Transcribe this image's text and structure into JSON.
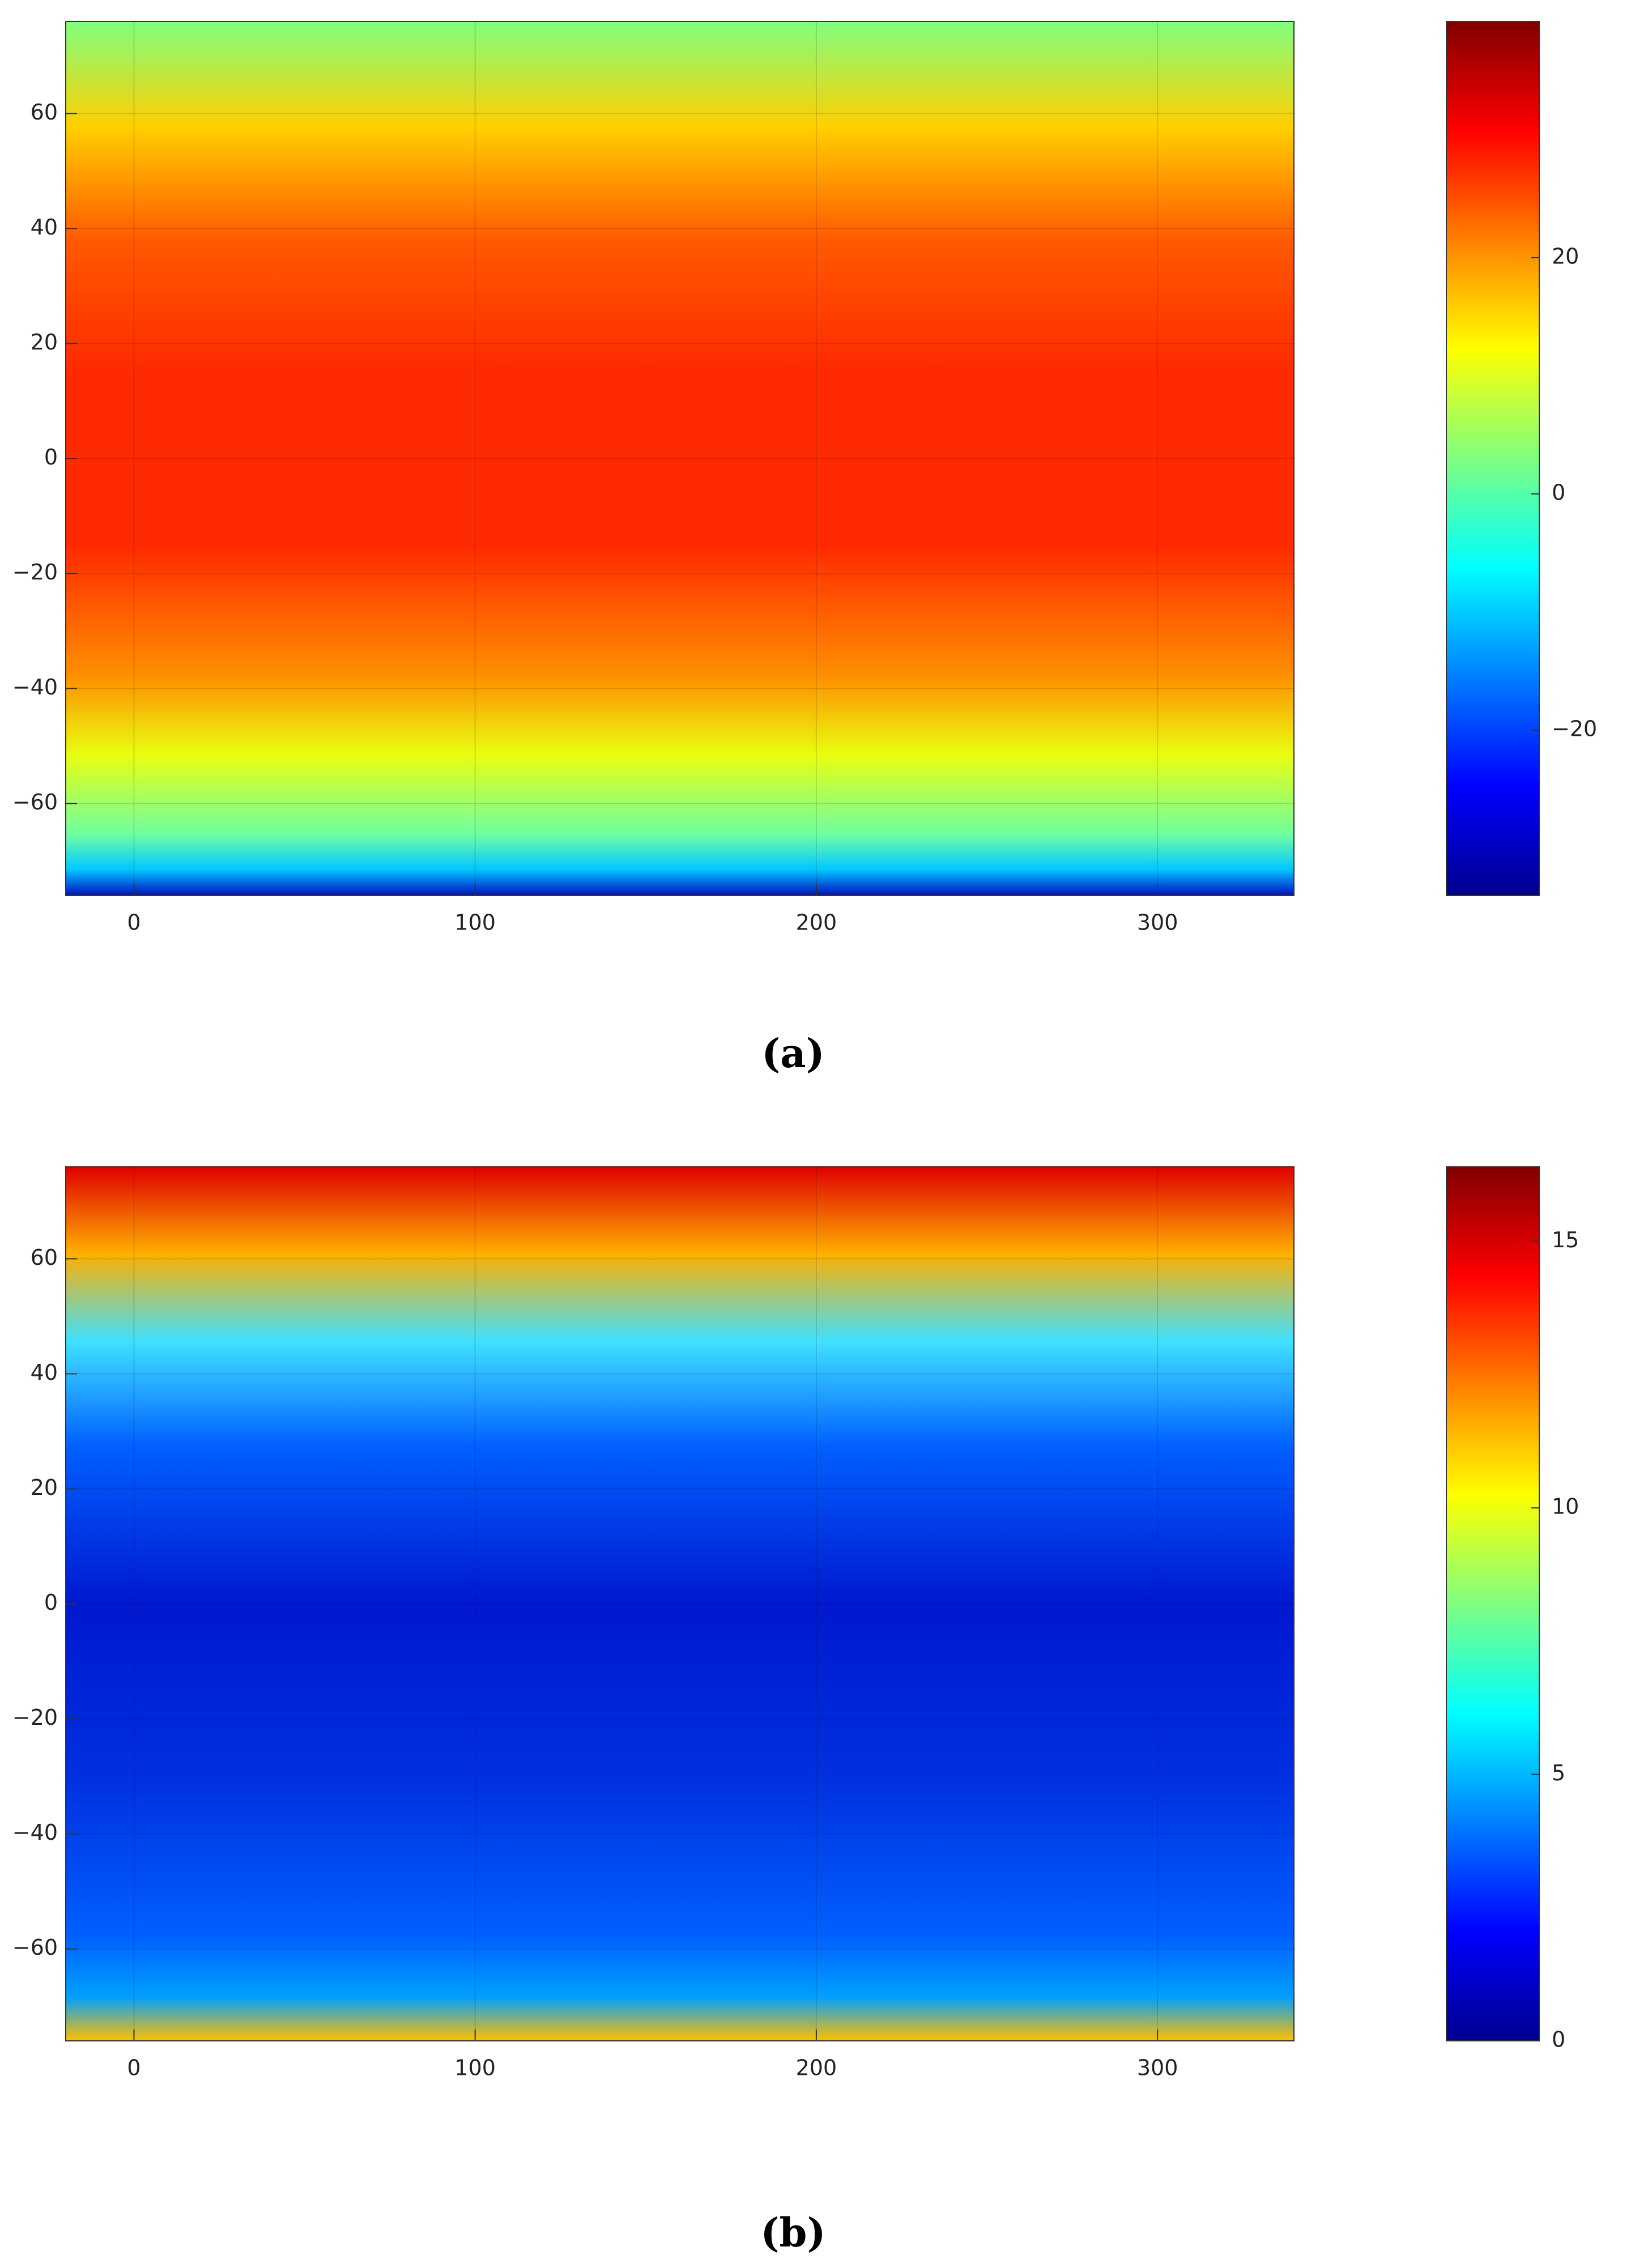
{
  "chart_data": [
    {
      "type": "heatmap",
      "colormap": "jet",
      "grid": true,
      "xlim": [
        -20,
        340
      ],
      "ylim": [
        -76,
        76
      ],
      "xticks": [
        0,
        100,
        200,
        300
      ],
      "yticks": [
        {
          "value": -60,
          "label": "−60"
        },
        {
          "value": -40,
          "label": "−40"
        },
        {
          "value": -20,
          "label": "−20"
        },
        0,
        20,
        40,
        60
      ],
      "colorbar_lim": [
        -34,
        40
      ],
      "colorbar_ticks": [
        {
          "value": -20,
          "label": "−20"
        },
        0,
        20
      ],
      "caption": "(a)"
    },
    {
      "type": "heatmap",
      "colormap": "jet",
      "grid": true,
      "xlim": [
        -20,
        340
      ],
      "ylim": [
        -76,
        76
      ],
      "xticks": [
        0,
        100,
        200,
        300
      ],
      "yticks": [
        {
          "value": -60,
          "label": "−60"
        },
        {
          "value": -40,
          "label": "−40"
        },
        {
          "value": -20,
          "label": "−20"
        },
        0,
        20,
        40,
        60
      ],
      "colorbar_lim": [
        0,
        16.4
      ],
      "colorbar_ticks": [
        0,
        5,
        10,
        15
      ],
      "caption": "(b)"
    }
  ]
}
